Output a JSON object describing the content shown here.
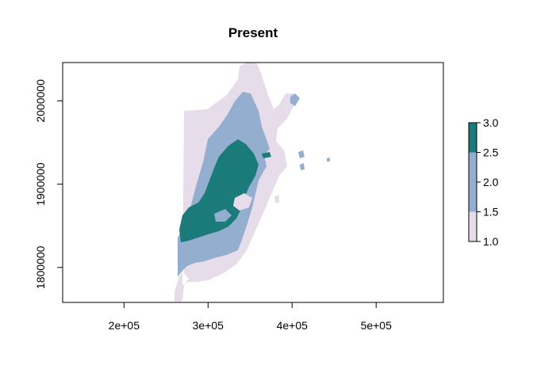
{
  "chart_data": {
    "type": "heatmap",
    "title": "Present",
    "xlabel": "",
    "ylabel": "",
    "xlim": [
      127000,
      580000
    ],
    "ylim": [
      1758000,
      2046000
    ],
    "x_ticks": [
      {
        "value": 200000,
        "label": "2e+05"
      },
      {
        "value": 300000,
        "label": "3e+05"
      },
      {
        "value": 400000,
        "label": "4e+05"
      },
      {
        "value": 500000,
        "label": "5e+05"
      }
    ],
    "y_ticks": [
      {
        "value": 1800000,
        "label": "1800000"
      },
      {
        "value": 1900000,
        "label": "1900000"
      },
      {
        "value": 2000000,
        "label": "2000000"
      }
    ],
    "legend": {
      "placement": "right",
      "min": 1.0,
      "max": 3.0,
      "ticks": [
        {
          "value": 1.0,
          "label": "1.0"
        },
        {
          "value": 1.5,
          "label": "1.5"
        },
        {
          "value": 2.0,
          "label": "2.0"
        },
        {
          "value": 2.5,
          "label": "2.5"
        },
        {
          "value": 3.0,
          "label": "3.0"
        }
      ],
      "bins": [
        {
          "from": 1.0,
          "to": 1.5,
          "color": "#e6dcea"
        },
        {
          "from": 1.5,
          "to": 2.5,
          "color": "#93aecf"
        },
        {
          "from": 2.5,
          "to": 3.0,
          "color": "#1b7b7a"
        }
      ]
    },
    "classes": [
      {
        "value": 1,
        "color": "#e6dcea"
      },
      {
        "value": 2,
        "color": "#93aecf"
      },
      {
        "value": 3,
        "color": "#1b7b7a"
      }
    ]
  }
}
